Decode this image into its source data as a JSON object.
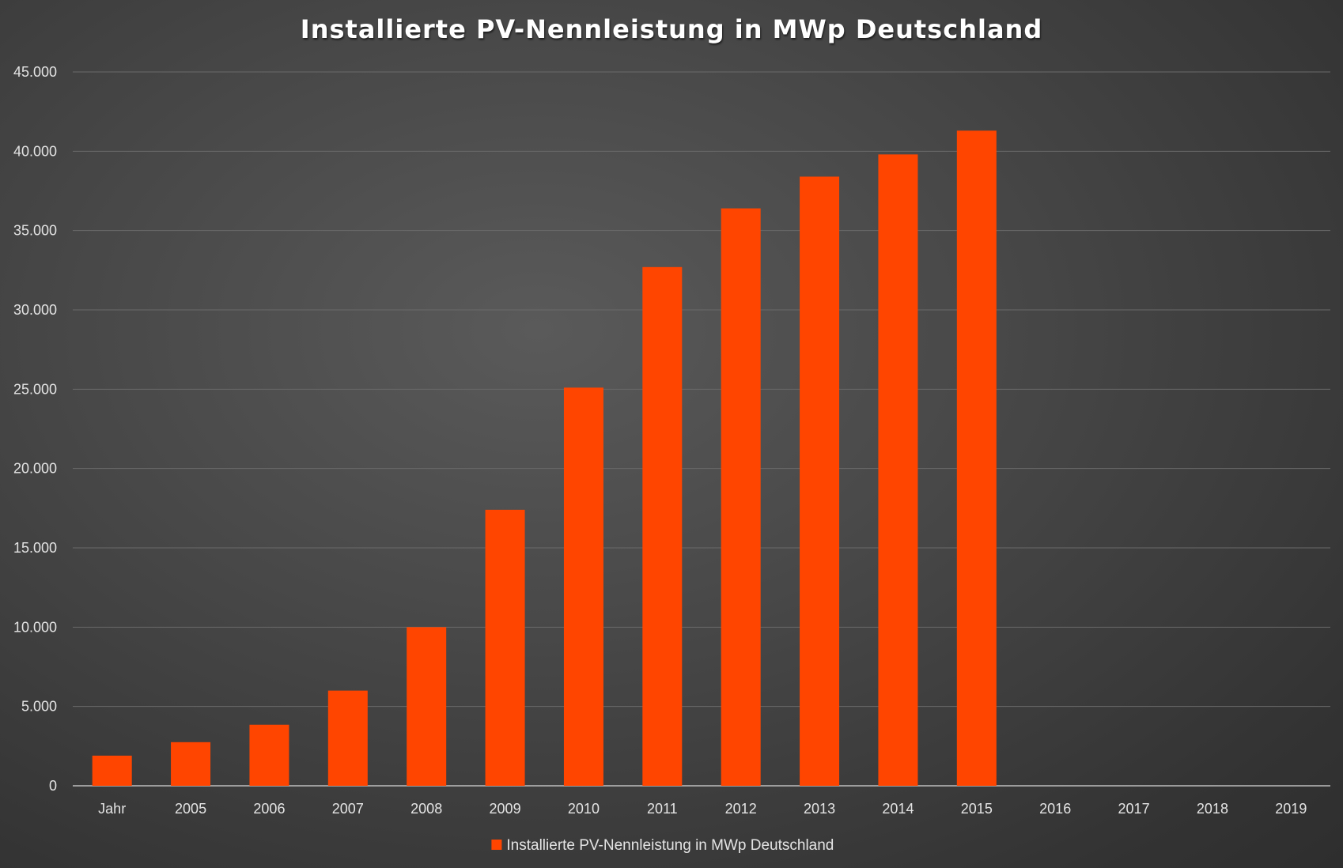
{
  "chart_data": {
    "type": "bar",
    "title": "Installierte PV-Nennleistung in MWp Deutschland",
    "categories": [
      "Jahr",
      "2005",
      "2006",
      "2007",
      "2008",
      "2009",
      "2010",
      "2011",
      "2012",
      "2013",
      "2014",
      "2015",
      "2016",
      "2017",
      "2018",
      "2019"
    ],
    "series": [
      {
        "name": "Installierte PV-Nennleistung in MWp Deutschland",
        "values": [
          1900,
          2750,
          3850,
          6000,
          10000,
          17400,
          25100,
          32700,
          36400,
          38400,
          39800,
          41300,
          null,
          null,
          null,
          null
        ],
        "color": "#ff4500"
      }
    ],
    "ylim": [
      0,
      45000
    ],
    "yticks": [
      0,
      5000,
      10000,
      15000,
      20000,
      25000,
      30000,
      35000,
      40000,
      45000
    ],
    "ytick_labels": [
      "0",
      "5.000",
      "10.000",
      "15.000",
      "20.000",
      "25.000",
      "30.000",
      "35.000",
      "40.000",
      "45.000"
    ],
    "grid": true,
    "legend": "bottom",
    "background": "#4a4a4a",
    "gridline_color": "#6a6a6a"
  }
}
